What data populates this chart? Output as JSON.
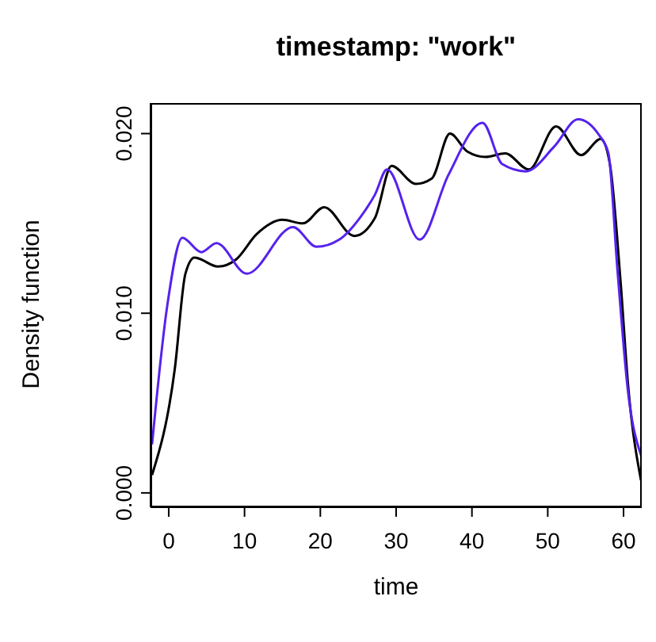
{
  "chart_data": {
    "type": "line",
    "title": "timestamp: \"work\"",
    "xlabel": "time",
    "ylabel": "Density function",
    "xlim": [
      -2.4,
      62.4
    ],
    "xticks": [
      0,
      10,
      20,
      30,
      40,
      50,
      60
    ],
    "ylim": [
      -0.0008,
      0.0217
    ],
    "yticks": [
      {
        "value": 0,
        "label": "0.000"
      },
      {
        "value": 0.01,
        "label": "0.010"
      },
      {
        "value": 0.02,
        "label": "0.020"
      }
    ],
    "line_style": "solid",
    "series": [
      {
        "color": "#000000",
        "x": [
          -2.2,
          0.8,
          2.2,
          3.4,
          6.5,
          8.9,
          11.6,
          15,
          17.7,
          20.5,
          24.5,
          27.2,
          29.4,
          32.6,
          34.7,
          37.1,
          39.4,
          41.8,
          44.4,
          47.5,
          51.1,
          54.4,
          57,
          58.2,
          59.6,
          60.6,
          62.3
        ],
        "values": [
          0.001,
          0.0069,
          0.0122,
          0.0131,
          0.0126,
          0.013,
          0.0144,
          0.0152,
          0.015,
          0.0159,
          0.0143,
          0.0153,
          0.0182,
          0.0172,
          0.0175,
          0.02,
          0.019,
          0.0187,
          0.0189,
          0.018,
          0.0204,
          0.0188,
          0.0197,
          0.0183,
          0.0118,
          0.006,
          0.0007
        ]
      },
      {
        "color": "#5522ee",
        "x": [
          -2.2,
          -0.2,
          1.8,
          4.3,
          6.3,
          10.3,
          16.4,
          19.5,
          22.5,
          25.2,
          27.2,
          28.8,
          33.1,
          36.9,
          41.4,
          44,
          47.1,
          50.9,
          54,
          56.8,
          58,
          59.2,
          60.6,
          62.3
        ],
        "values": [
          0.0027,
          0.0104,
          0.0142,
          0.0134,
          0.0139,
          0.0122,
          0.0148,
          0.0137,
          0.0141,
          0.0153,
          0.0166,
          0.018,
          0.0141,
          0.0177,
          0.0206,
          0.0183,
          0.0179,
          0.0193,
          0.0208,
          0.0199,
          0.0189,
          0.0124,
          0.0056,
          0.0021
        ]
      }
    ]
  }
}
